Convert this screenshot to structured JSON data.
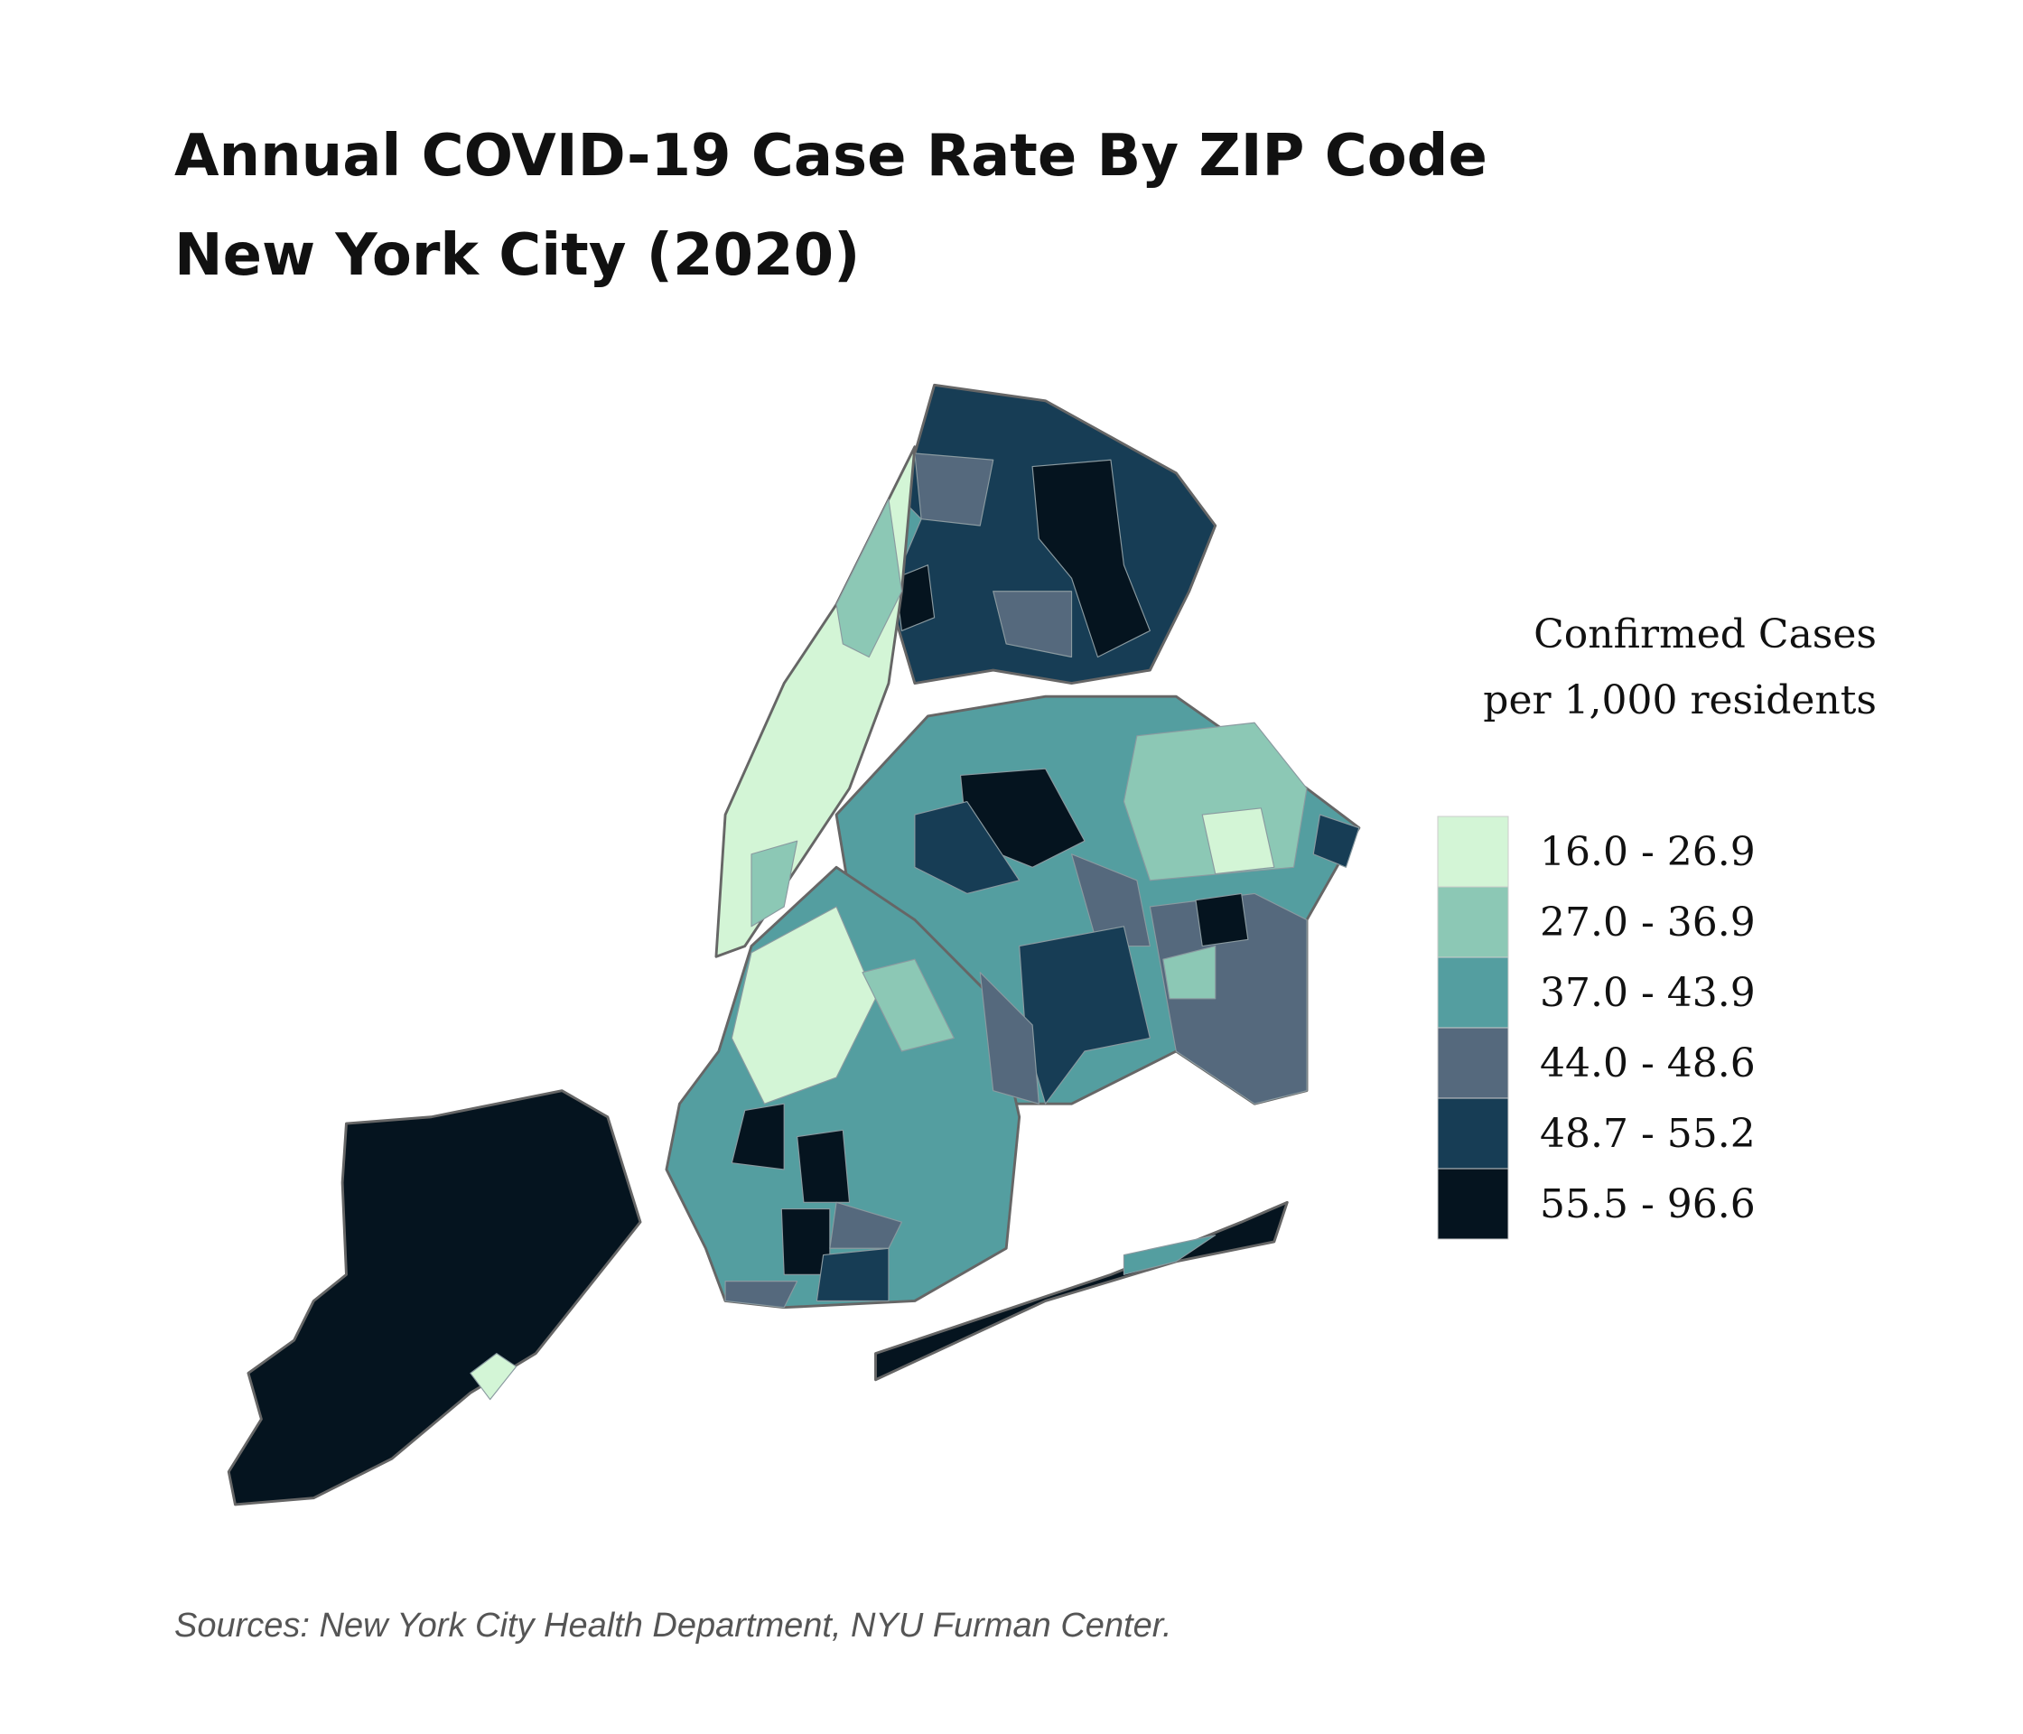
{
  "header": {
    "title_lines": [
      "Annual COVID-19 Case Rate By ZIP Code",
      "New York City (2020)"
    ]
  },
  "legend": {
    "title_lines": [
      "Confirmed Cases",
      "per 1,000 residents"
    ],
    "bins": [
      {
        "label": "16.0 - 26.9",
        "color": "#d3f5d6"
      },
      {
        "label": "27.0 - 36.9",
        "color": "#8cc8b5"
      },
      {
        "label": "37.0 - 43.9",
        "color": "#549ea0"
      },
      {
        "label": "44.0 - 48.6",
        "color": "#55697d"
      },
      {
        "label": "48.7 - 55.2",
        "color": "#173d55"
      },
      {
        "label": "55.5 - 96.6",
        "color": "#05141f"
      }
    ]
  },
  "footer": {
    "source": "Sources: New York City Health Department, NYU Furman Center."
  }
}
